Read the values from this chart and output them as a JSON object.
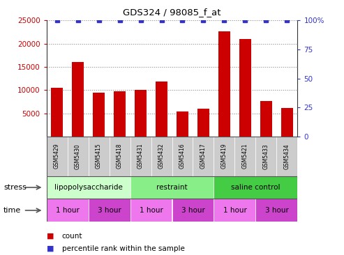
{
  "title": "GDS324 / 98085_f_at",
  "samples": [
    "GSM5429",
    "GSM5430",
    "GSM5415",
    "GSM5418",
    "GSM5431",
    "GSM5432",
    "GSM5416",
    "GSM5417",
    "GSM5419",
    "GSM5421",
    "GSM5433",
    "GSM5434"
  ],
  "counts": [
    10500,
    16000,
    9400,
    9800,
    10000,
    11800,
    5400,
    6000,
    22700,
    21000,
    7600,
    6200
  ],
  "percentile_ranks": [
    100,
    100,
    100,
    100,
    100,
    100,
    100,
    100,
    100,
    100,
    100,
    100
  ],
  "bar_color": "#cc0000",
  "dot_color": "#3333cc",
  "ylim_left": [
    0,
    25000
  ],
  "ylim_right": [
    0,
    100
  ],
  "yticks_left": [
    5000,
    10000,
    15000,
    20000,
    25000
  ],
  "yticks_right": [
    0,
    25,
    50,
    75,
    100
  ],
  "ytick_labels_right": [
    "0",
    "25",
    "50",
    "75",
    "100%"
  ],
  "stress_groups": [
    {
      "label": "lipopolysaccharide",
      "start": 0,
      "end": 4,
      "color": "#ccffcc"
    },
    {
      "label": "restraint",
      "start": 4,
      "end": 8,
      "color": "#88ee88"
    },
    {
      "label": "saline control",
      "start": 8,
      "end": 12,
      "color": "#44cc44"
    }
  ],
  "time_groups": [
    {
      "label": "1 hour",
      "start": 0,
      "end": 2,
      "color": "#ee77ee"
    },
    {
      "label": "3 hour",
      "start": 2,
      "end": 4,
      "color": "#cc44cc"
    },
    {
      "label": "1 hour",
      "start": 4,
      "end": 6,
      "color": "#ee77ee"
    },
    {
      "label": "3 hour",
      "start": 6,
      "end": 8,
      "color": "#cc44cc"
    },
    {
      "label": "1 hour",
      "start": 8,
      "end": 10,
      "color": "#ee77ee"
    },
    {
      "label": "3 hour",
      "start": 10,
      "end": 12,
      "color": "#cc44cc"
    }
  ],
  "legend_count_color": "#cc0000",
  "legend_percentile_color": "#3333cc",
  "left_tick_color": "#cc0000",
  "right_tick_color": "#3333cc",
  "grid_color": "#888888",
  "sample_box_color": "#cccccc",
  "spine_color": "#333333",
  "bar_width": 0.55,
  "dot_size": 4
}
